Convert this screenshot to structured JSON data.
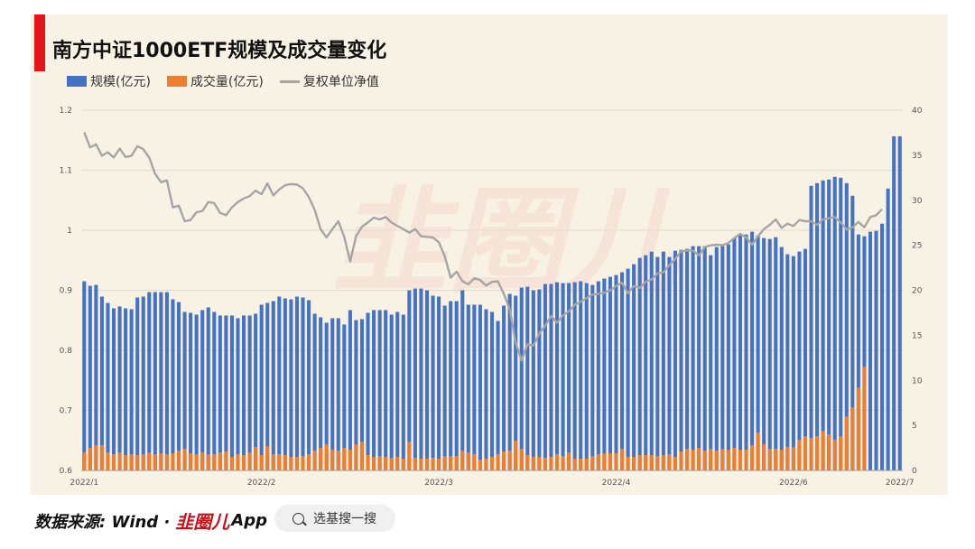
{
  "title": "南方中证1000ETF规模及成交量变化",
  "legend": {
    "scale_label": "规模(亿元)",
    "volume_label": "成交量(亿元)",
    "nav_label": "复权单位净值"
  },
  "colors": {
    "scale": "#4472c4",
    "volume": "#ed7d31",
    "nav": "#a5a5a5",
    "accent": "#e8121b"
  },
  "footer": {
    "source": "数据来源: Wind · ",
    "logo": "韭圈儿",
    "app": "App"
  },
  "search": {
    "label": "选基搜一搜",
    "icon": "search-icon"
  },
  "watermark": "韭圈儿",
  "chart_data": {
    "type": "bar",
    "title": "南方中证1000ETF规模及成交量变化",
    "x_ticks": [
      "2022/1",
      "2022/2",
      "2022/3",
      "2022/4",
      "2022/6",
      "2022/7"
    ],
    "left_axis": {
      "ticks": [
        "0.6",
        "0.7",
        "0.8",
        "0.9",
        "1",
        "1.1",
        "1.2"
      ],
      "range": [
        0.6,
        1.2
      ]
    },
    "right_axis": {
      "ticks": [
        "0",
        "5",
        "10",
        "15",
        "20",
        "25",
        "30",
        "35",
        "40"
      ],
      "range": [
        0,
        40
      ]
    },
    "grid": true,
    "series": [
      {
        "name": "规模(亿元)",
        "type": "bar",
        "axis": "right",
        "values": [
          21,
          20.5,
          20.6,
          19.3,
          18.6,
          18,
          18.2,
          18,
          17.9,
          19.2,
          19.3,
          19.8,
          19.8,
          19.8,
          19.8,
          19,
          18.7,
          17.6,
          17.5,
          17.3,
          17.8,
          18.1,
          17.6,
          17.2,
          17.2,
          17.2,
          16.9,
          17.2,
          17.2,
          17.4,
          18.4,
          18.6,
          18.8,
          19.3,
          19.1,
          19,
          19.3,
          19.2,
          18.9,
          17.4,
          17,
          16.4,
          16.9,
          16.9,
          16.2,
          17.8,
          16.7,
          16.8,
          17.5,
          17.8,
          17.8,
          17.8,
          17.3,
          17.6,
          17.3,
          20,
          20.2,
          20.2,
          20,
          19.4,
          19.3,
          18.3,
          18.8,
          18.8,
          20,
          18.4,
          18.4,
          18.4,
          17.9,
          17.6,
          16.6,
          18.3,
          19.6,
          19.4,
          20.3,
          20.4,
          20,
          20.1,
          20.7,
          20.7,
          20.9,
          20.8,
          20.8,
          20.9,
          21,
          20.8,
          20.6,
          21,
          21.3,
          21.5,
          21.7,
          22,
          22.4,
          22.9,
          23.6,
          23.9,
          24.3,
          23.7,
          24.3,
          23.7,
          24.4,
          24.5,
          24.6,
          24.9,
          24.9,
          24.9,
          23.9,
          24.8,
          24.9,
          25.1,
          25.8,
          26.1,
          26.2,
          26.5,
          26.1,
          25.8,
          25.7,
          25.9,
          24.8,
          24,
          23.8,
          24.3,
          24.6,
          31.6,
          31.9,
          32.2,
          32.3,
          32.6,
          32.5,
          31.9,
          30.5,
          26.2,
          26,
          26.5,
          26.6,
          27.4,
          31.3,
          37.1,
          37.1
        ]
      },
      {
        "name": "成交量(亿元)",
        "type": "bar",
        "axis": "right",
        "values": [
          2,
          2.5,
          2.8,
          2.8,
          2,
          1.8,
          2,
          1.7,
          1.8,
          1.7,
          1.8,
          2,
          1.8,
          1.9,
          1.8,
          1.9,
          2.2,
          2.4,
          1.9,
          1.8,
          2,
          1.8,
          1.8,
          2,
          2.1,
          1.5,
          1.8,
          1.7,
          2,
          2.6,
          1.7,
          2.7,
          1.8,
          1.8,
          1.7,
          1.5,
          1.5,
          1.6,
          1.8,
          2.2,
          2.5,
          2.9,
          2.3,
          2.2,
          2.5,
          2.3,
          2.9,
          3.2,
          1.7,
          1.5,
          1.6,
          1.5,
          1.4,
          1.5,
          1.3,
          3.2,
          1.4,
          1.3,
          1.3,
          1.4,
          1.3,
          1.6,
          1.6,
          1.6,
          2.2,
          2,
          1.8,
          1.2,
          1.3,
          1.5,
          1.8,
          2.1,
          2.2,
          3.3,
          2.4,
          1.7,
          1.5,
          1.5,
          1.4,
          1.5,
          1.8,
          1.6,
          2,
          1.3,
          1.3,
          1.3,
          1.6,
          1.8,
          1.9,
          1.9,
          1.9,
          2.4,
          1.5,
          1.5,
          1.7,
          1.7,
          1.7,
          1.6,
          1.7,
          1.8,
          1.5,
          2.1,
          2.4,
          2.3,
          2.5,
          2.2,
          2.4,
          2.2,
          2.4,
          2.3,
          2.5,
          2.3,
          2.3,
          2.8,
          4.2,
          2.9,
          2.4,
          2.4,
          2.3,
          2.6,
          2.6,
          3.4,
          3.8,
          3.6,
          3.8,
          4.4,
          4,
          3.4,
          3.8,
          6,
          7,
          9.2,
          11.5
        ]
      },
      {
        "name": "复权单位净值",
        "type": "line",
        "axis": "left",
        "values": [
          1.163,
          1.138,
          1.143,
          1.124,
          1.13,
          1.121,
          1.136,
          1.122,
          1.124,
          1.14,
          1.135,
          1.121,
          1.094,
          1.08,
          1.083,
          1.038,
          1.041,
          1.015,
          1.017,
          1.03,
          1.032,
          1.047,
          1.045,
          1.029,
          1.025,
          1.038,
          1.047,
          1.053,
          1.057,
          1.066,
          1.06,
          1.078,
          1.058,
          1.068,
          1.075,
          1.077,
          1.076,
          1.07,
          1.055,
          1.034,
          1.002,
          0.988,
          1.002,
          1.015,
          0.989,
          0.948,
          0.99,
          1.006,
          1.013,
          1.021,
          1.018,
          1.022,
          1.013,
          1.007,
          1.002,
          0.996,
          1.002,
          0.99,
          0.989,
          0.988,
          0.98,
          0.957,
          0.921,
          0.931,
          0.915,
          0.91,
          0.92,
          0.917,
          0.908,
          0.914,
          0.915,
          0.894,
          0.869,
          0.813,
          0.783,
          0.81,
          0.808,
          0.828,
          0.841,
          0.857,
          0.846,
          0.858,
          0.865,
          0.876,
          0.881,
          0.887,
          0.893,
          0.894,
          0.896,
          0.9,
          0.907,
          0.913,
          0.895,
          0.907,
          0.904,
          0.914,
          0.918,
          0.928,
          0.93,
          0.942,
          0.952,
          0.965,
          0.966,
          0.966,
          0.958,
          0.972,
          0.975,
          0.976,
          0.975,
          0.979,
          0.987,
          0.994,
          0.988,
          0.976,
          0.99,
          1.002,
          1.009,
          1.018,
          1.004,
          1.011,
          1.007,
          1.017,
          1.015,
          1.015,
          1.009,
          1.018,
          1.02,
          1.022,
          1.013,
          1.001,
          1.005,
          1.014,
          1.005,
          1.022,
          1.025,
          1.035
        ]
      }
    ]
  }
}
